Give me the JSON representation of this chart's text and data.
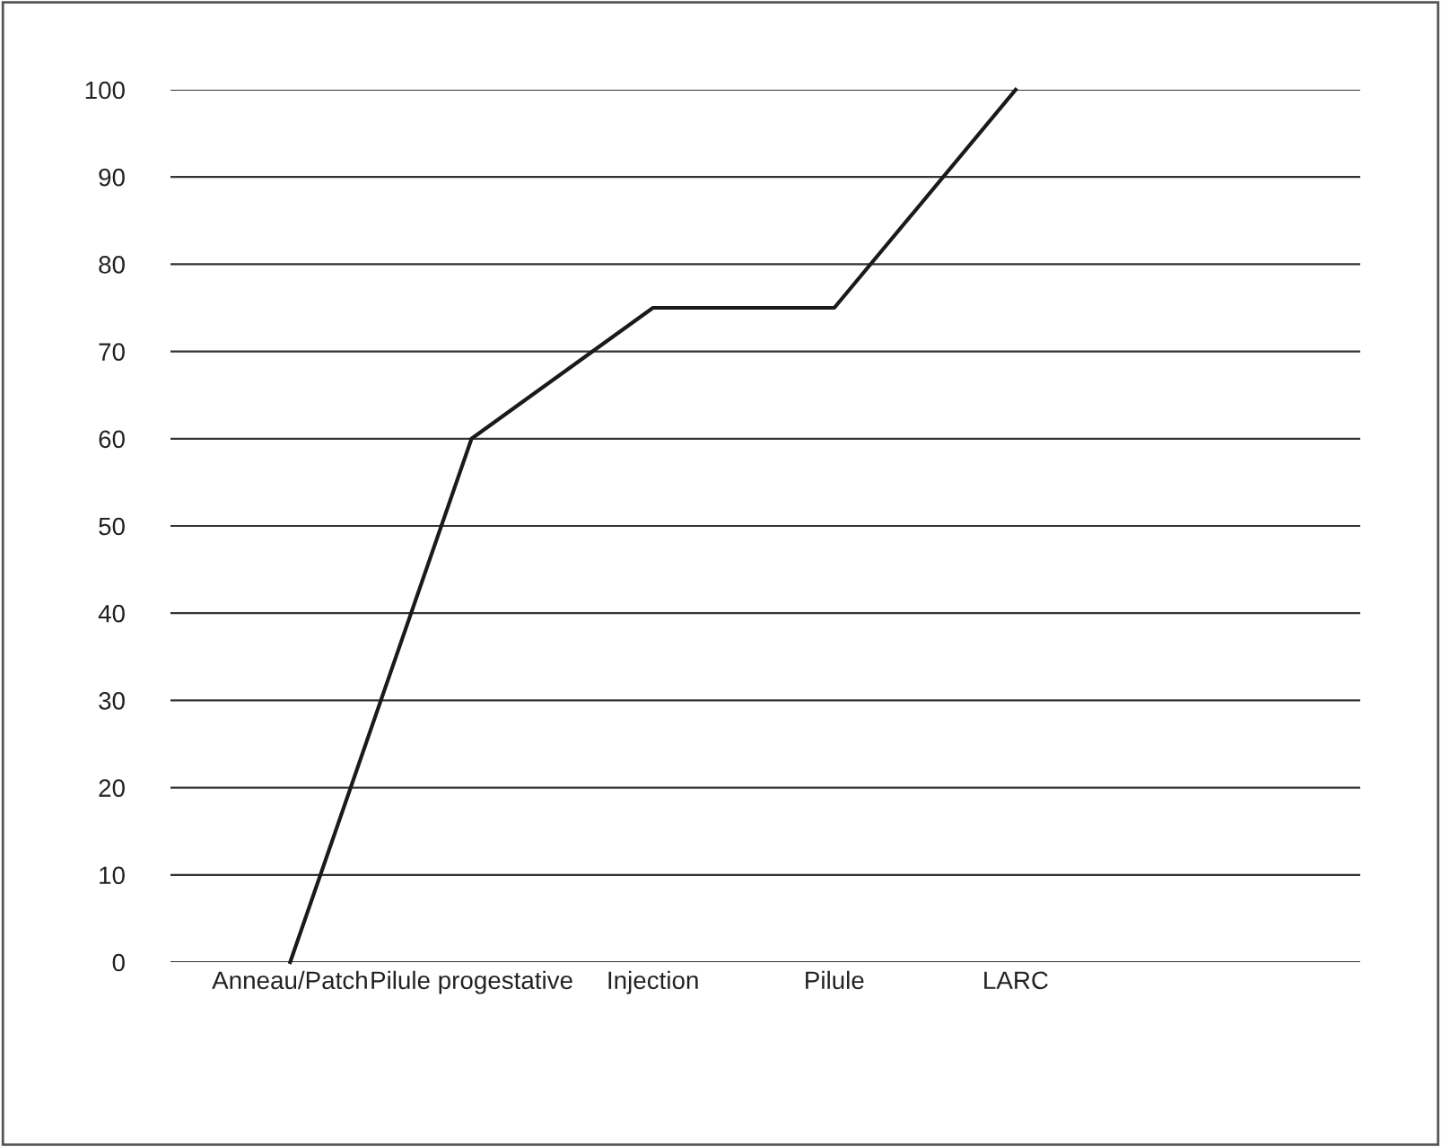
{
  "chart_data": {
    "type": "line",
    "categories": [
      "Anneau/Patch",
      "Pilule progestative",
      "Injection",
      "Pilule",
      "LARC"
    ],
    "series": [
      {
        "color": "#1a1a1a",
        "values": [
          0,
          60,
          75,
          75,
          100
        ]
      }
    ],
    "ylim": [
      0,
      100
    ],
    "yticks": [
      0,
      10,
      20,
      30,
      40,
      50,
      60,
      70,
      80,
      90,
      100
    ],
    "grid": "y",
    "marker": "none",
    "line_style": "solid"
  }
}
